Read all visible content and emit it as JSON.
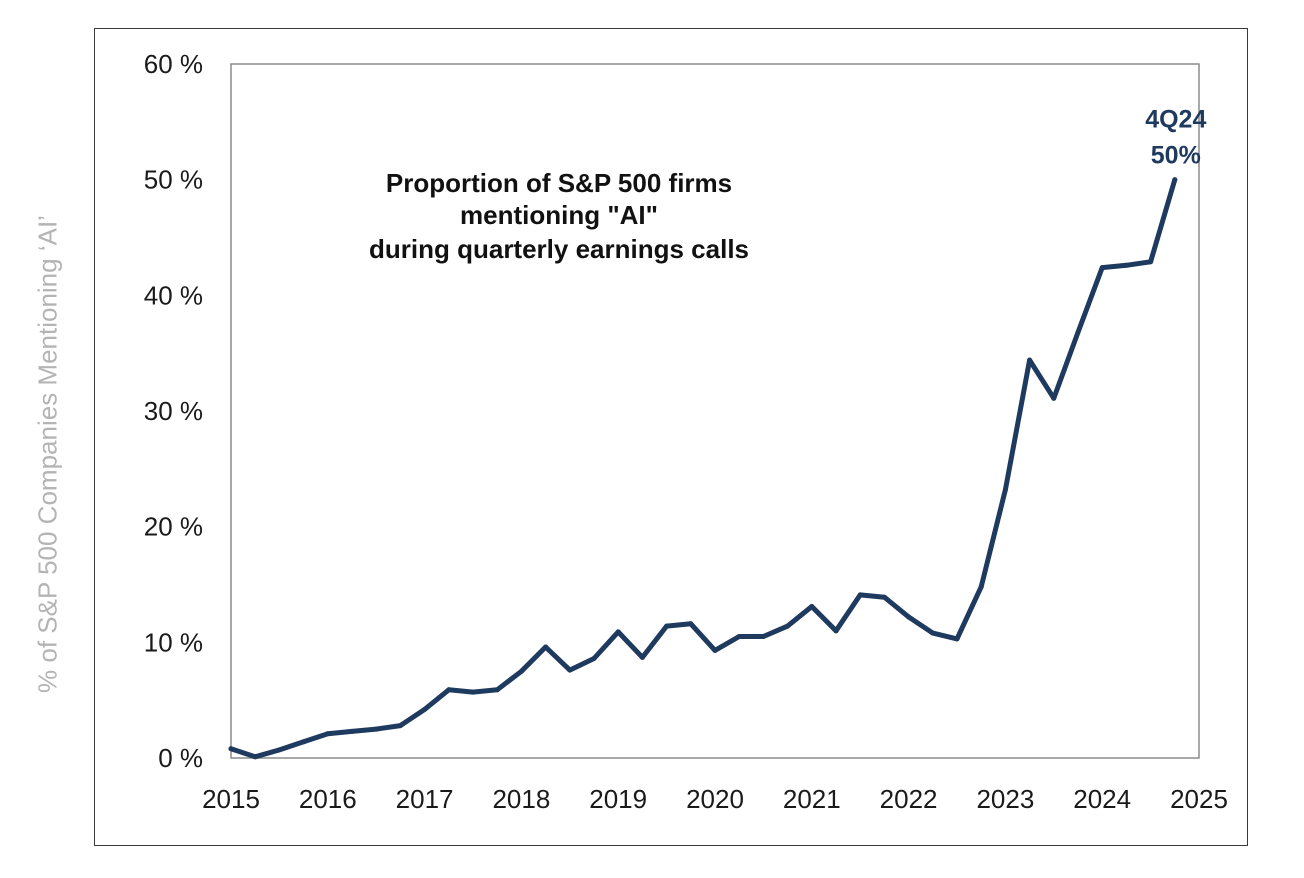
{
  "chart_data": {
    "type": "line",
    "title_lines": [
      "Proportion of S&P 500 firms",
      "mentioning \"AI\"",
      "during quarterly earnings calls"
    ],
    "ylabel": "% of S&P 500 Companies Mentioning ‘AI’",
    "xlabel": "",
    "ylim": [
      0,
      60
    ],
    "xlim": [
      2015,
      2025
    ],
    "y_ticks": [
      {
        "value": 0,
        "label": "0 %"
      },
      {
        "value": 10,
        "label": "10 %"
      },
      {
        "value": 20,
        "label": "20 %"
      },
      {
        "value": 30,
        "label": "30 %"
      },
      {
        "value": 40,
        "label": "40 %"
      },
      {
        "value": 50,
        "label": "50 %"
      },
      {
        "value": 60,
        "label": "60 %"
      }
    ],
    "x_ticks": [
      {
        "value": 2015,
        "label": "2015"
      },
      {
        "value": 2016,
        "label": "2016"
      },
      {
        "value": 2017,
        "label": "2017"
      },
      {
        "value": 2018,
        "label": "2018"
      },
      {
        "value": 2019,
        "label": "2019"
      },
      {
        "value": 2020,
        "label": "2020"
      },
      {
        "value": 2021,
        "label": "2021"
      },
      {
        "value": 2022,
        "label": "2022"
      },
      {
        "value": 2023,
        "label": "2023"
      },
      {
        "value": 2024,
        "label": "2024"
      },
      {
        "value": 2025,
        "label": "2025"
      }
    ],
    "grid": false,
    "line_color": "#1f3a5f",
    "series": [
      {
        "name": "",
        "x": [
          2015.0,
          2015.25,
          2015.5,
          2015.75,
          2016.0,
          2016.25,
          2016.5,
          2016.75,
          2017.0,
          2017.25,
          2017.5,
          2017.75,
          2018.0,
          2018.25,
          2018.5,
          2018.75,
          2019.0,
          2019.25,
          2019.5,
          2019.75,
          2020.0,
          2020.25,
          2020.5,
          2020.75,
          2021.0,
          2021.25,
          2021.5,
          2021.75,
          2022.0,
          2022.25,
          2022.5,
          2022.75,
          2023.0,
          2023.25,
          2023.5,
          2023.75,
          2024.0,
          2024.25,
          2024.5,
          2024.75
        ],
        "values": [
          0.8,
          0.1,
          0.7,
          1.4,
          2.1,
          2.3,
          2.5,
          2.8,
          4.2,
          5.9,
          5.7,
          5.9,
          7.5,
          9.6,
          7.6,
          8.6,
          10.9,
          8.7,
          11.4,
          11.6,
          9.3,
          10.5,
          10.5,
          11.4,
          13.1,
          11.0,
          14.1,
          13.9,
          12.2,
          10.8,
          10.3,
          14.8,
          23.2,
          34.4,
          31.1,
          36.8,
          42.4,
          42.6,
          42.9,
          50.0
        ]
      }
    ],
    "annotation": {
      "lines": [
        "4Q24",
        "50%"
      ],
      "x": 2024.75,
      "y": 50.0
    }
  }
}
